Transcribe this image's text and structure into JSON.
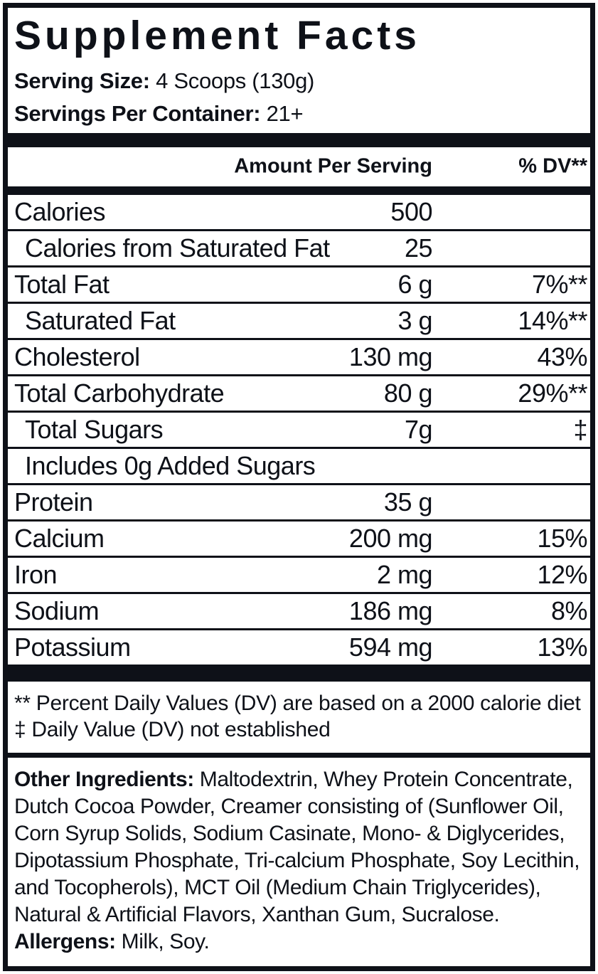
{
  "label": {
    "title": "Supplement Facts",
    "serving_size": {
      "label": "Serving Size:",
      "value": "4 Scoops (130g)"
    },
    "servings_per_container": {
      "label": "Servings Per Container:",
      "value": "21+"
    },
    "table": {
      "headers": {
        "amount": "Amount Per Serving",
        "dv": "% DV**"
      },
      "rows": [
        {
          "label": "Calories",
          "amount": "500",
          "dv": ""
        },
        {
          "label": "Calories from Saturated Fat",
          "amount": "25",
          "dv": ""
        },
        {
          "label": "Total Fat",
          "amount": "6 g",
          "dv": "7%**"
        },
        {
          "label": "Saturated Fat",
          "amount": "3 g",
          "dv": "14%**"
        },
        {
          "label": "Cholesterol",
          "amount": "130 mg",
          "dv": "43%"
        },
        {
          "label": "Total Carbohydrate",
          "amount": "80 g",
          "dv": "29%**"
        },
        {
          "label": "Total Sugars",
          "amount": "7g",
          "dv": "‡"
        },
        {
          "label": "Includes 0g Added Sugars",
          "amount": "",
          "dv": ""
        },
        {
          "label": "Protein",
          "amount": "35 g",
          "dv": ""
        },
        {
          "label": "Calcium",
          "amount": "200 mg",
          "dv": "15%"
        },
        {
          "label": "Iron",
          "amount": "2 mg",
          "dv": "12%"
        },
        {
          "label": "Sodium",
          "amount": "186 mg",
          "dv": "8%"
        },
        {
          "label": "Potassium",
          "amount": "594 mg",
          "dv": "13%"
        }
      ]
    },
    "footnotes": [
      "** Percent Daily Values (DV) are based on a 2000 calorie diet",
      "‡ Daily Value (DV) not established"
    ],
    "other_ingredients": {
      "label": "Other Ingredients:",
      "text": " Maltodextrin, Whey Protein Concentrate, Dutch Cocoa Powder, Creamer consisting of (Sunflower Oil, Corn Syrup Solids, Sodium Casinate, Mono- & Diglycerides, Dipotassium Phosphate, Tri-calcium Phosphate, Soy Lecithin, and Tocopherols), MCT Oil (Medium Chain Triglycerides), Natural & Artificial Flavors, Xanthan Gum, Sucralose."
    },
    "allergens": {
      "label": "Allergens:",
      "text": " Milk, Soy."
    },
    "colors": {
      "ink": "#0e1118",
      "background": "#ffffff"
    }
  }
}
